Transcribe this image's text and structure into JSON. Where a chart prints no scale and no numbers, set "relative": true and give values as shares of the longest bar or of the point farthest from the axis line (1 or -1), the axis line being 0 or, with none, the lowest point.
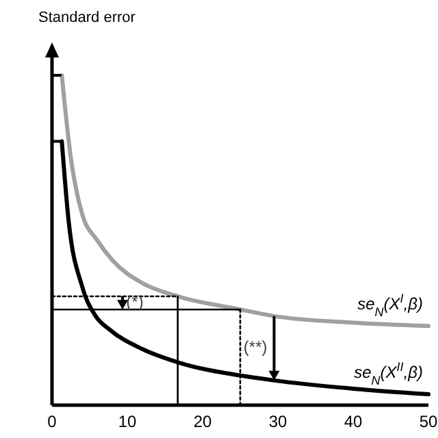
{
  "chart_data": {
    "type": "line",
    "relative": true,
    "ylabel": "Standard error",
    "xlim": [
      0,
      50
    ],
    "xticks": [
      0,
      10,
      20,
      30,
      40,
      50
    ],
    "series": [
      {
        "name": "se$_{N}$(X$^{I}$,β)",
        "color": "#a0a0a0",
        "x": [
          1.3,
          2.5,
          4,
          6,
          8,
          12,
          16.7,
          25,
          29.5,
          40,
          50
        ],
        "values": [
          1.0,
          0.75,
          0.58,
          0.5,
          0.44,
          0.37,
          0.33,
          0.29,
          0.27,
          0.25,
          0.24
        ]
      },
      {
        "name": "se$_{N}$(X$^{II}$,β)",
        "color": "#000000",
        "x": [
          1.3,
          2.2,
          4,
          5.8,
          7.6,
          12,
          16.7,
          25.8,
          29.5,
          40,
          50
        ],
        "values": [
          0.8,
          0.56,
          0.36,
          0.27,
          0.23,
          0.17,
          0.13,
          0.087,
          0.075,
          0.05,
          0.033
        ]
      },
      {
        "type": "line",
        "color": "#000000",
        "line_style": "solid",
        "x": [
          0,
          25
        ],
        "values": [
          0.29,
          0.29
        ]
      },
      {
        "type": "line",
        "color": "#000000",
        "line_style": "dashed",
        "x": [
          0,
          1.3
        ],
        "values": [
          1.0,
          1.0
        ]
      },
      {
        "type": "line",
        "color": "#000000",
        "line_style": "dashed",
        "x": [
          0,
          1.3
        ],
        "values": [
          0.8,
          0.8
        ]
      },
      {
        "type": "line",
        "color": "#000000",
        "line_style": "dotted",
        "x": [
          25,
          25
        ],
        "values": [
          0.29,
          0
        ]
      },
      {
        "type": "line",
        "color": "#000000",
        "line_style": "dotted",
        "x": [
          0,
          16.7
        ],
        "values": [
          0.33,
          0.33
        ]
      },
      {
        "type": "line",
        "color": "#000000",
        "line_style": "solid",
        "x": [
          16.7,
          16.7
        ],
        "values": [
          0.33,
          0
        ]
      }
    ],
    "annotations": [
      {
        "text": "(*)",
        "x": 11,
        "y": 0.31
      },
      "(**)"
    ]
  }
}
